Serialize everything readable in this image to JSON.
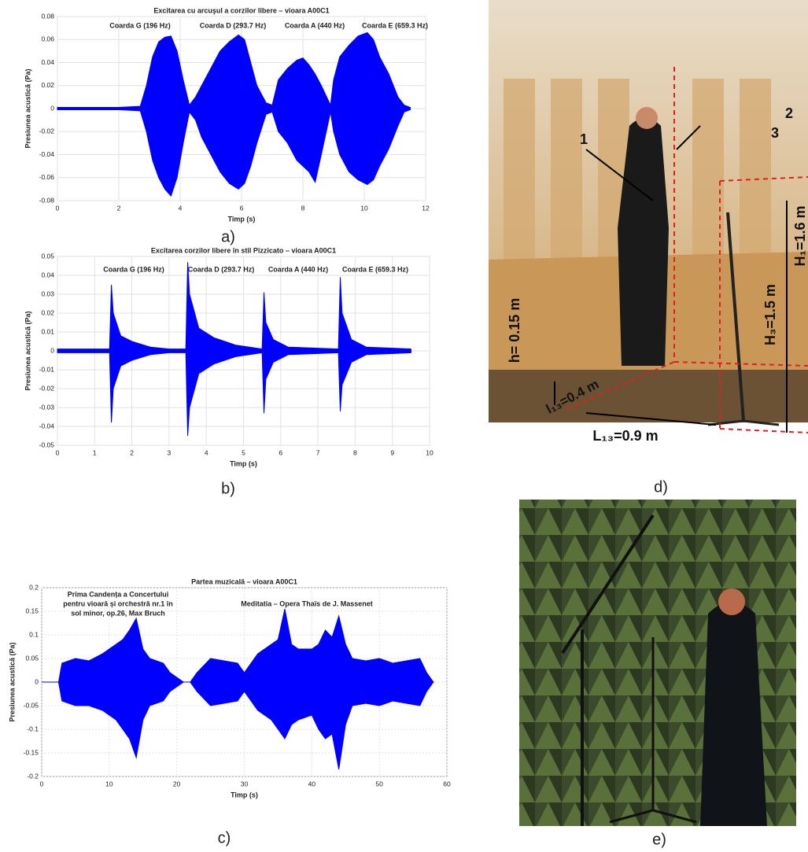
{
  "chart_data": [
    {
      "type": "area",
      "title": "Excitarea cu arcuşul a  corzilor libere – vioara A00C1",
      "x_label": "Timp (s)",
      "y_label": "Presiunea acustică (Pa)",
      "annotations": [
        "Coarda G (196 Hz)",
        "Coarda D (293.7 Hz)",
        "Coarda A (440 Hz)",
        "Coarda E (659.3 Hz)"
      ],
      "xlim": [
        0,
        12
      ],
      "xticks": [
        0,
        2,
        4,
        6,
        8,
        10,
        12
      ],
      "ylim": [
        -0.08,
        0.08
      ],
      "yticks": [
        -0.08,
        -0.06,
        -0.04,
        -0.02,
        0,
        0.02,
        0.04,
        0.06,
        0.08
      ],
      "grid": true,
      "x": [
        0,
        1,
        2,
        2.7,
        2.9,
        3.1,
        3.3,
        3.5,
        3.7,
        3.9,
        4.1,
        4.3,
        4.5,
        4.7,
        5.0,
        5.3,
        5.6,
        5.9,
        6.1,
        6.3,
        6.5,
        6.8,
        7.0,
        7.2,
        7.5,
        7.8,
        8.0,
        8.2,
        8.4,
        8.6,
        8.9,
        9.0,
        9.2,
        9.5,
        9.8,
        10.1,
        10.3,
        10.5,
        10.8,
        11.1,
        11.3,
        11.5
      ],
      "series": [
        {
          "color": "#0000ff",
          "values": [
            0.001,
            0.001,
            0.001,
            0.002,
            0.02,
            0.045,
            0.058,
            0.062,
            0.063,
            0.05,
            0.025,
            0.003,
            0.01,
            0.02,
            0.035,
            0.05,
            0.058,
            0.064,
            0.06,
            0.04,
            0.02,
            0.005,
            0.003,
            0.025,
            0.035,
            0.042,
            0.044,
            0.038,
            0.03,
            0.02,
            0.003,
            0.025,
            0.045,
            0.055,
            0.063,
            0.066,
            0.06,
            0.045,
            0.03,
            0.01,
            0.003,
            0.001
          ]
        },
        {
          "color": "#0000ff",
          "values": [
            -0.001,
            -0.001,
            -0.001,
            -0.002,
            -0.02,
            -0.045,
            -0.06,
            -0.07,
            -0.076,
            -0.06,
            -0.03,
            -0.003,
            -0.01,
            -0.025,
            -0.04,
            -0.055,
            -0.065,
            -0.07,
            -0.065,
            -0.05,
            -0.03,
            -0.005,
            -0.003,
            -0.02,
            -0.03,
            -0.045,
            -0.05,
            -0.055,
            -0.064,
            -0.04,
            -0.003,
            -0.02,
            -0.04,
            -0.055,
            -0.062,
            -0.066,
            -0.062,
            -0.05,
            -0.035,
            -0.015,
            -0.003,
            -0.001
          ]
        }
      ]
    },
    {
      "type": "area",
      "title": "Excitarea corzilor libere în stil Pizzicato – vioara A00C1",
      "x_label": "Timp (s)",
      "y_label": "Presiunea acustică (Pa)",
      "annotations": [
        "Coarda G (196 Hz)",
        "Coarda D (293.7 Hz)",
        "Coarda A (440 Hz)",
        "Coarda E (659.3 Hz)"
      ],
      "xlim": [
        0,
        10
      ],
      "xticks": [
        0,
        1,
        2,
        3,
        4,
        5,
        6,
        7,
        8,
        9,
        10
      ],
      "ylim": [
        -0.05,
        0.05
      ],
      "yticks": [
        -0.05,
        -0.04,
        -0.03,
        -0.02,
        -0.01,
        0,
        0.01,
        0.02,
        0.03,
        0.04,
        0.05
      ],
      "grid": true,
      "x": [
        0,
        1.4,
        1.45,
        1.5,
        1.7,
        2.0,
        2.5,
        3.0,
        3.45,
        3.5,
        3.55,
        3.8,
        4.2,
        4.8,
        5.5,
        5.55,
        5.6,
        5.8,
        6.2,
        7.55,
        7.6,
        7.65,
        7.9,
        8.3,
        9.5
      ],
      "series": [
        {
          "color": "#0000ff",
          "values": [
            0.001,
            0.001,
            0.035,
            0.02,
            0.008,
            0.005,
            0.002,
            0.001,
            0.001,
            0.047,
            0.03,
            0.012,
            0.007,
            0.003,
            0.001,
            0.031,
            0.015,
            0.006,
            0.002,
            0.001,
            0.039,
            0.02,
            0.006,
            0.002,
            0.001
          ]
        },
        {
          "color": "#0000ff",
          "values": [
            -0.001,
            -0.001,
            -0.038,
            -0.02,
            -0.008,
            -0.005,
            -0.002,
            -0.001,
            -0.001,
            -0.045,
            -0.03,
            -0.012,
            -0.007,
            -0.003,
            -0.001,
            -0.033,
            -0.015,
            -0.006,
            -0.002,
            -0.001,
            -0.032,
            -0.018,
            -0.006,
            -0.002,
            -0.001
          ]
        }
      ]
    },
    {
      "type": "area",
      "title": "Partea muzicală – vioara A00C1",
      "x_label": "Timp (s)",
      "y_label": "Presiunea acustică (Pa)",
      "annotations": [
        "Prima Candența a Concertului",
        "pentru vioară și orchestră nr.1 în",
        "sol minor, op.26, Max Bruch",
        "Meditatia – Opera Thaïs de J. Massenet"
      ],
      "xlim": [
        0,
        60
      ],
      "xticks": [
        0,
        10,
        20,
        30,
        40,
        50,
        60
      ],
      "ylim": [
        -0.2,
        0.2
      ],
      "yticks": [
        -0.2,
        -0.15,
        -0.1,
        -0.05,
        0,
        0.05,
        0.1,
        0.15,
        0.2
      ],
      "grid": true,
      "x": [
        0,
        2.5,
        3,
        5,
        7,
        9,
        11,
        12,
        13,
        14,
        15,
        16,
        18,
        19,
        20,
        21,
        22,
        23,
        25,
        27,
        29,
        30,
        32,
        34,
        35,
        36,
        37,
        38,
        40,
        41,
        42,
        43,
        44,
        45,
        46,
        48,
        50,
        52,
        54,
        56,
        57,
        58
      ],
      "series": [
        {
          "color": "#0000ff",
          "values": [
            0,
            0,
            0.04,
            0.05,
            0.045,
            0.06,
            0.08,
            0.09,
            0.11,
            0.135,
            0.07,
            0.05,
            0.04,
            0.02,
            0.01,
            0,
            0,
            0.02,
            0.05,
            0.045,
            0.04,
            0.02,
            0.06,
            0.08,
            0.09,
            0.155,
            0.08,
            0.07,
            0.07,
            0.08,
            0.11,
            0.095,
            0.14,
            0.08,
            0.05,
            0.045,
            0.05,
            0.04,
            0.045,
            0.05,
            0.02,
            0
          ]
        },
        {
          "color": "#0000ff",
          "values": [
            0,
            0,
            -0.04,
            -0.05,
            -0.05,
            -0.06,
            -0.08,
            -0.1,
            -0.12,
            -0.16,
            -0.08,
            -0.05,
            -0.04,
            -0.02,
            -0.01,
            0,
            0,
            -0.02,
            -0.05,
            -0.045,
            -0.04,
            -0.02,
            -0.06,
            -0.08,
            -0.1,
            -0.12,
            -0.09,
            -0.08,
            -0.07,
            -0.1,
            -0.12,
            -0.11,
            -0.185,
            -0.09,
            -0.05,
            -0.045,
            -0.05,
            -0.04,
            -0.045,
            -0.05,
            -0.02,
            0
          ]
        }
      ]
    }
  ],
  "panel_labels": [
    "a)",
    "b)",
    "c)",
    "d)",
    "e)"
  ],
  "photo_d": {
    "labels": [
      "1",
      "2",
      "3",
      "h= 0.15 m",
      "l₁₃=0.4 m",
      "L₁₃=0.9 m",
      "H₃=1.5 m",
      "H₁=1.6 m"
    ]
  }
}
